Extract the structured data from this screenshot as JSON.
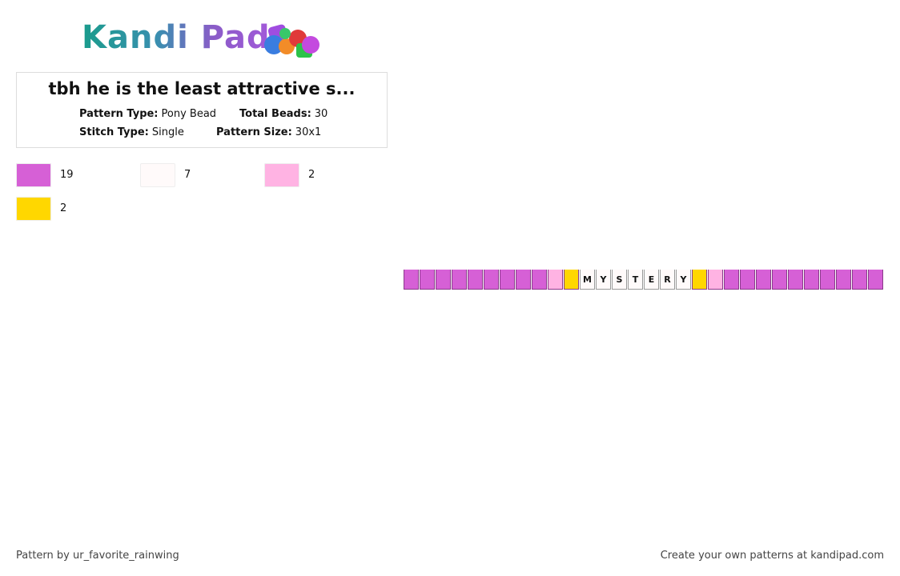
{
  "logo": "Kandi Pad",
  "title": "tbh he is the least attractive s...",
  "info": [
    {
      "label": "Pattern Type:",
      "value": "Pony Bead"
    },
    {
      "label": "Total Beads:",
      "value": "30"
    },
    {
      "label": "Stitch Type:",
      "value": "Single"
    },
    {
      "label": "Pattern Size:",
      "value": "30x1"
    }
  ],
  "palette": [
    {
      "color": "#d660d6",
      "count": "19"
    },
    {
      "color": "#fffafa",
      "count": "7"
    },
    {
      "color": "#ffb3e3",
      "count": "2"
    },
    {
      "color": "#ffd700",
      "count": "2"
    }
  ],
  "beads": [
    {
      "color": "#d660d6"
    },
    {
      "color": "#d660d6"
    },
    {
      "color": "#d660d6"
    },
    {
      "color": "#d660d6"
    },
    {
      "color": "#d660d6"
    },
    {
      "color": "#d660d6"
    },
    {
      "color": "#d660d6"
    },
    {
      "color": "#d660d6"
    },
    {
      "color": "#d660d6"
    },
    {
      "color": "#ffb3e3"
    },
    {
      "color": "#ffd700"
    },
    {
      "color": "#fffafa",
      "letter": "M"
    },
    {
      "color": "#fffafa",
      "letter": "Y"
    },
    {
      "color": "#fffafa",
      "letter": "S"
    },
    {
      "color": "#fffafa",
      "letter": "T"
    },
    {
      "color": "#fffafa",
      "letter": "E"
    },
    {
      "color": "#fffafa",
      "letter": "R"
    },
    {
      "color": "#fffafa",
      "letter": "Y"
    },
    {
      "color": "#ffd700"
    },
    {
      "color": "#ffb3e3"
    },
    {
      "color": "#d660d6"
    },
    {
      "color": "#d660d6"
    },
    {
      "color": "#d660d6"
    },
    {
      "color": "#d660d6"
    },
    {
      "color": "#d660d6"
    },
    {
      "color": "#d660d6"
    },
    {
      "color": "#d660d6"
    },
    {
      "color": "#d660d6"
    },
    {
      "color": "#d660d6"
    },
    {
      "color": "#d660d6"
    }
  ],
  "footer": {
    "credit": "Pattern by ur_favorite_rainwing",
    "promo": "Create your own patterns at kandipad.com"
  }
}
